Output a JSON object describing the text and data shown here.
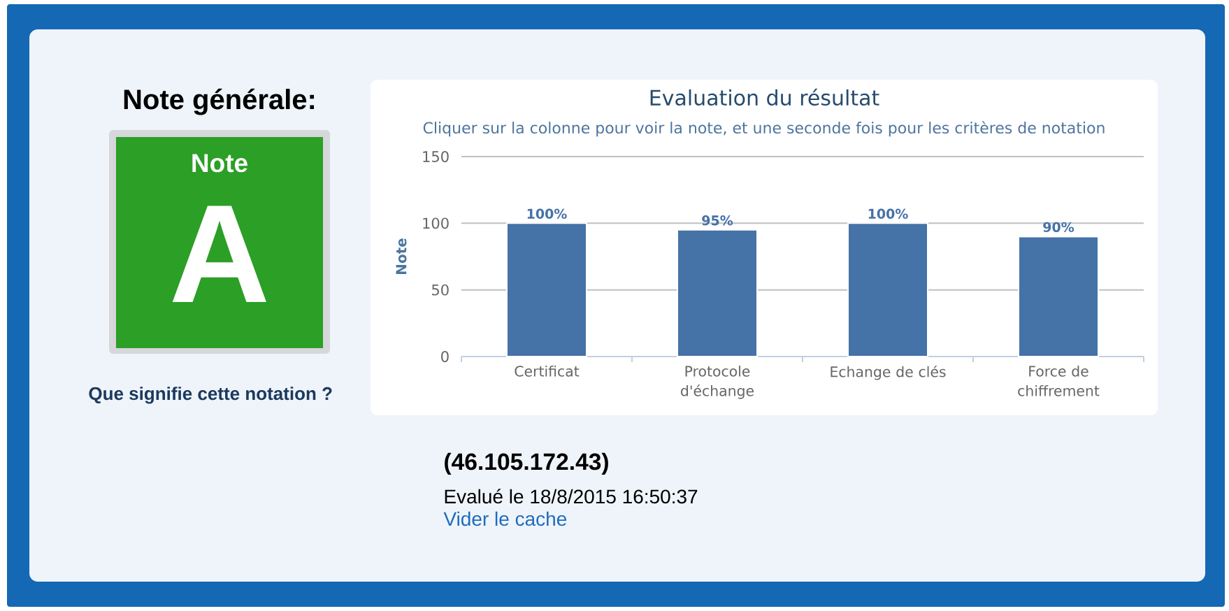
{
  "chart_data": [
    {
      "type": "other",
      "title": "Note générale:",
      "color": "#2c9f26",
      "annotations": [
        "Note",
        "A",
        "Que signifie cette notation ?"
      ]
    },
    {
      "type": "bar",
      "title": "Evaluation du résultat",
      "subtitle": "Cliquer sur la colonne pour voir la note, et une seconde fois pour les critères de notation",
      "ylabel": "Note",
      "categories": [
        "Certificat",
        "Protocole d'échange",
        "Echange de clés",
        "Force de chiffrement"
      ],
      "values": [
        100,
        95,
        100,
        90
      ],
      "value_labels": [
        "100%",
        "95%",
        "100%",
        "90%"
      ],
      "color": "#4572a7",
      "ylim": [
        0,
        150
      ],
      "yticks": [
        0,
        50,
        100,
        150
      ],
      "grid": "y",
      "annotations": [
        "(46.105.172.43)",
        "Evalué le 18/8/2015 16:50:37",
        "Vider le cache"
      ]
    }
  ]
}
